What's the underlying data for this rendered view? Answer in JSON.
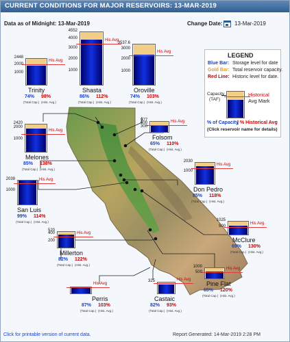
{
  "header": {
    "title": "CURRENT CONDITIONS FOR MAJOR RESERVOIRS: 13-MAR-2019",
    "data_as_of": "Data as of Midnight: 13-Mar-2019",
    "change_date_label": "Change Date:",
    "date_value": "13-Mar-2019"
  },
  "legend": {
    "title": "LEGEND",
    "blue_label": "Blue Bar:",
    "blue_text": "Storage level for date",
    "gold_label": "Gold Bar:",
    "gold_text": "Total reservoir capacity.",
    "red_label": "Red Line:",
    "red_text": "Historic level for date.",
    "capacity_line1": "Capacity",
    "capacity_line2": "(TAF)",
    "hist_line1": "Historical",
    "hist_line2": "Avg Mark",
    "pct_cap": "% of Capacity",
    "pct_sep": "|",
    "pct_hist": "% Historical Avg",
    "click_note": "(Click reservoir name for details)"
  },
  "common": {
    "his_avg": "His Avg",
    "total_cap": "(Total Cap.)",
    "hist_avg": "(Hist. Avg.)"
  },
  "reservoirs": [
    {
      "name": "Trinity",
      "pct_capacity": "74%",
      "pct_hist": "98%",
      "axis_top": "2448",
      "axis_ticks": [
        "2000",
        "1000"
      ],
      "storage_fraction": 0.74,
      "hist_fraction": 0.755
    },
    {
      "name": "Shasta",
      "pct_capacity": "86%",
      "pct_hist": "112%",
      "axis_top": "4552",
      "axis_ticks": [
        "4000",
        "3000",
        "2000",
        "1000"
      ],
      "storage_fraction": 0.86,
      "hist_fraction": 0.77
    },
    {
      "name": "Oroville",
      "pct_capacity": "74%",
      "pct_hist": "103%",
      "axis_top": "3537.6",
      "axis_ticks": [
        "3000",
        "2000",
        "1000"
      ],
      "storage_fraction": 0.74,
      "hist_fraction": 0.72
    },
    {
      "name": "Melones",
      "pct_capacity": "85%",
      "pct_hist": "138%",
      "axis_top": "2420",
      "axis_ticks": [
        "2000",
        "1000"
      ],
      "storage_fraction": 0.85,
      "hist_fraction": 0.62
    },
    {
      "name": "Folsom",
      "pct_capacity": "65%",
      "pct_hist": "110%",
      "axis_top": "977",
      "axis_ticks": [
        "600",
        "300"
      ],
      "storage_fraction": 0.65,
      "hist_fraction": 0.59
    },
    {
      "name": "Don Pedro",
      "pct_capacity": "85%",
      "pct_hist": "118%",
      "axis_top": "2030",
      "axis_ticks": [
        "1000"
      ],
      "storage_fraction": 0.85,
      "hist_fraction": 0.72
    },
    {
      "name": "San Luis",
      "pct_capacity": "99%",
      "pct_hist": "114%",
      "axis_top": "2039",
      "axis_ticks": [
        "1000"
      ],
      "storage_fraction": 0.99,
      "hist_fraction": 0.87
    },
    {
      "name": "McClure",
      "pct_capacity": "69%",
      "pct_hist": "130%",
      "axis_top": "1025",
      "axis_ticks": [
        "500"
      ],
      "storage_fraction": 0.69,
      "hist_fraction": 0.53
    },
    {
      "name": "Millerton",
      "pct_capacity": "82%",
      "pct_hist": "122%",
      "axis_top": "520",
      "axis_ticks": [
        "400",
        "200"
      ],
      "storage_fraction": 0.82,
      "hist_fraction": 0.67
    },
    {
      "name": "Pine Flat",
      "pct_capacity": "65%",
      "pct_hist": "120%",
      "axis_top": "1000",
      "axis_ticks": [
        "500"
      ],
      "storage_fraction": 0.65,
      "hist_fraction": 0.54
    },
    {
      "name": "Perris",
      "pct_capacity": "87%",
      "pct_hist": "103%",
      "axis_top": "",
      "axis_ticks": [],
      "storage_fraction": 0.87,
      "hist_fraction": 0.84
    },
    {
      "name": "Castaic",
      "pct_capacity": "82%",
      "pct_hist": "93%",
      "axis_top": "325",
      "axis_ticks": [],
      "storage_fraction": 0.82,
      "hist_fraction": 0.88
    }
  ],
  "footer": {
    "printable_link": "Click for printable version of current data.",
    "report_generated": "Report Generated: 14-Mar-2019 2:28 PM"
  },
  "colors": {
    "storage_bar": "#1030e0",
    "capacity_bar": "#f1cd88",
    "historic_line": "#e23b3b",
    "pct_capacity_text": "#1a3fc8",
    "pct_hist_text": "#cc0000"
  }
}
